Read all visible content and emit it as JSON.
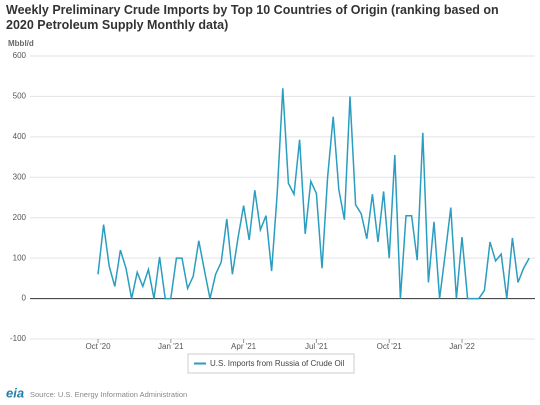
{
  "chart_data": {
    "type": "line",
    "title": "Weekly Preliminary Crude Imports by Top 10 Countries of Origin (ranking based on 2020 Petroleum Supply Monthly data)",
    "y_label": "Mbbl/d",
    "source": "Source: U.S. Energy Information Administration",
    "logo": "eia",
    "categories": [
      "Oct '20",
      null,
      null,
      null,
      null,
      null,
      null,
      null,
      null,
      null,
      null,
      null,
      null,
      "Jan '21",
      null,
      null,
      null,
      null,
      null,
      null,
      null,
      null,
      null,
      null,
      null,
      null,
      "Apr '21",
      null,
      null,
      null,
      null,
      null,
      null,
      null,
      null,
      null,
      null,
      null,
      null,
      "Jul '21",
      null,
      null,
      null,
      null,
      null,
      null,
      null,
      null,
      null,
      null,
      null,
      null,
      "Oct '21",
      null,
      null,
      null,
      null,
      null,
      null,
      null,
      null,
      null,
      null,
      null,
      null,
      "Jan '22",
      null,
      null,
      null,
      null,
      null,
      null,
      null,
      null,
      null,
      null,
      null,
      null
    ],
    "series": [
      {
        "name": "U.S. Imports from Russia of Crude Oil",
        "color": "#2a9dc0",
        "values": [
          60,
          183,
          80,
          30,
          120,
          75,
          0,
          65,
          30,
          72,
          0,
          103,
          0,
          0,
          100,
          100,
          25,
          55,
          143,
          70,
          0,
          60,
          90,
          197,
          60,
          150,
          230,
          145,
          268,
          170,
          205,
          68,
          260,
          520,
          285,
          258,
          393,
          160,
          290,
          260,
          75,
          300,
          450,
          270,
          195,
          500,
          232,
          210,
          148,
          258,
          140,
          265,
          100,
          355,
          0,
          205,
          205,
          95,
          410,
          40,
          190,
          0,
          110,
          225,
          0,
          152,
          0,
          0,
          0,
          20,
          140,
          93,
          110,
          0,
          150,
          40,
          75,
          100
        ]
      }
    ],
    "ylim": [
      -100,
      600
    ],
    "yticks": [
      -100,
      0,
      100,
      200,
      300,
      400,
      500,
      600
    ],
    "grid": true
  }
}
